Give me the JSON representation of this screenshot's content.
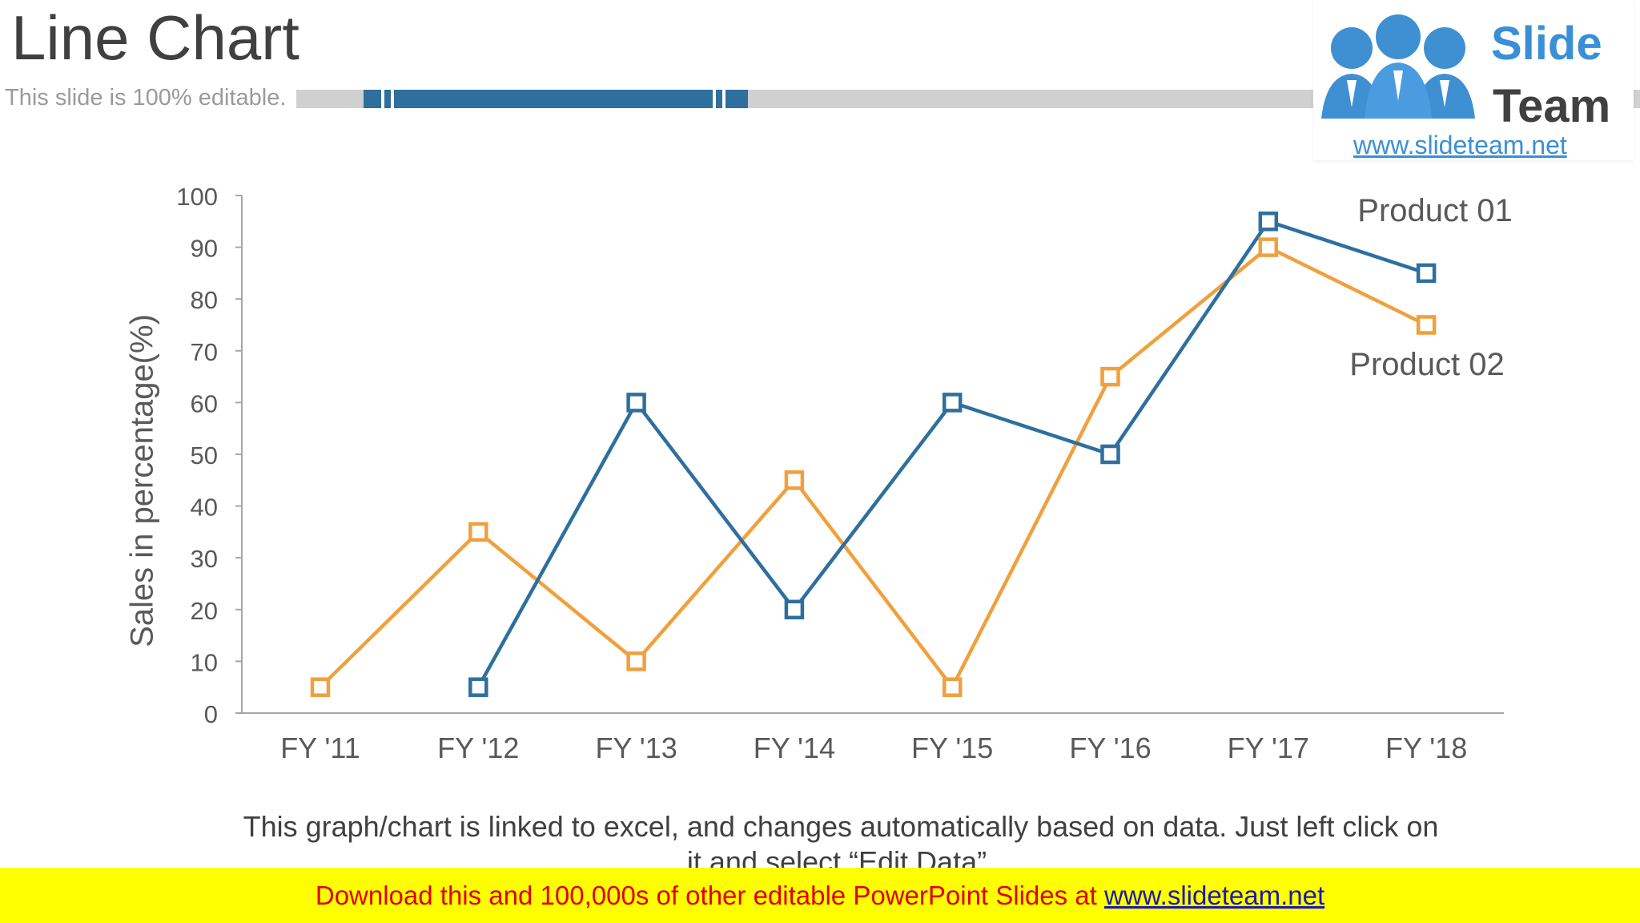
{
  "slide": {
    "title": "Line Chart",
    "subtitle": "This slide is 100% editable.",
    "note": "This graph/chart is linked to excel, and changes automatically based on data. Just left click on it and select “Edit Data”."
  },
  "logo": {
    "word1": "Slide",
    "word2": "Team",
    "url": "www.slideteam.net"
  },
  "footer": {
    "text": "Download this and 100,000s of other editable PowerPoint Slides at ",
    "link": "www.slideteam.net"
  },
  "colors": {
    "accent_blue": "#2e6f9e",
    "accent_orange": "#f0a03c",
    "footer_bg": "#ffff00",
    "footer_text": "#e00000"
  },
  "chart_data": {
    "type": "line",
    "ylabel": "Sales in percentage(%)",
    "xlabel": "",
    "categories": [
      "FY '11",
      "FY '12",
      "FY '13",
      "FY '14",
      "FY '15",
      "FY '16",
      "FY '17",
      "FY '18"
    ],
    "ylim": [
      0,
      100
    ],
    "yticks": [
      "0",
      "10",
      "20",
      "30",
      "40",
      "50",
      "60",
      "70",
      "80",
      "90",
      "100"
    ],
    "grid": false,
    "legend": "direct labels at line ends",
    "series": [
      {
        "name": "Product 01",
        "color": "#2e6f9e",
        "values": [
          null,
          5,
          60,
          20,
          60,
          50,
          95,
          85
        ]
      },
      {
        "name": "Product 02",
        "color": "#f0a03c",
        "values": [
          5,
          35,
          10,
          45,
          5,
          65,
          90,
          75
        ]
      }
    ]
  }
}
